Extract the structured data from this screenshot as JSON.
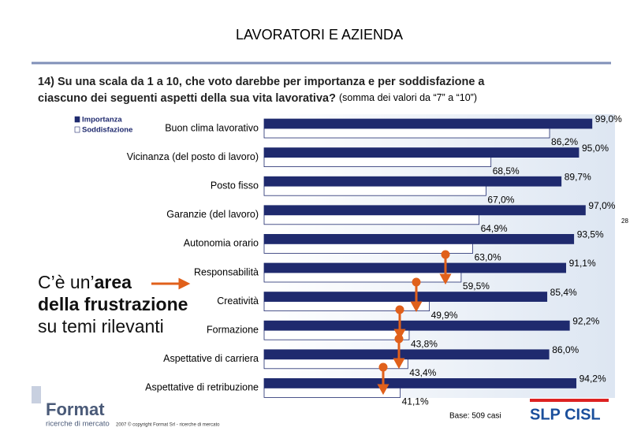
{
  "chart_data": {
    "type": "hbar",
    "title": "LAVORATORI E AZIENDA",
    "question_line1": "14) Su una scala da 1 a 10, che voto darebbe per importanza e per soddisfazione a",
    "question_line2": "ciascuno dei seguenti aspetti della sua vita lavorativa?",
    "question_note": "(somma dei valori da “7” a “10”)",
    "page_number": "28",
    "categories": [
      "Buon clima lavorativo",
      "Vicinanza (del posto di lavoro)",
      "Posto fisso",
      "Garanzie (del lavoro)",
      "Autonomia orario",
      "Responsabilità",
      "Creatività",
      "Formazione",
      "Aspettative di carriera",
      "Aspettative di retribuzione"
    ],
    "series": [
      {
        "name": "Importanza",
        "color": "#1f2a6e",
        "values": [
          99.0,
          95.0,
          89.7,
          97.0,
          93.5,
          91.1,
          85.4,
          92.2,
          86.0,
          94.2
        ],
        "value_labels": [
          "99,0%",
          "95,0%",
          "89,7%",
          "97,0%",
          "93,5%",
          "91,1%",
          "85,4%",
          "92,2%",
          "86,0%",
          "94,2%"
        ]
      },
      {
        "name": "Soddisfazione",
        "color": "#ffffff",
        "values": [
          86.2,
          68.5,
          67.0,
          64.9,
          63.0,
          59.5,
          49.9,
          43.8,
          43.4,
          41.1
        ],
        "value_labels": [
          "86,2%",
          "68,5%",
          "67,0%",
          "64,9%",
          "63,0%",
          "59,5%",
          "49,9%",
          "43,8%",
          "43,4%",
          "41,1%"
        ]
      }
    ],
    "xlim": [
      0,
      100
    ],
    "annotation": [
      "C’è un’",
      "area",
      "della frustrazione",
      "su temi rilevanti"
    ],
    "base_note": "Base: 509 casi",
    "copyright": "2007 © copyright Format Srl - ricerche di mercato",
    "logo_left": "Format",
    "logo_left_sub": "ricerche di mercato",
    "logo_right": "SLP CISL"
  }
}
